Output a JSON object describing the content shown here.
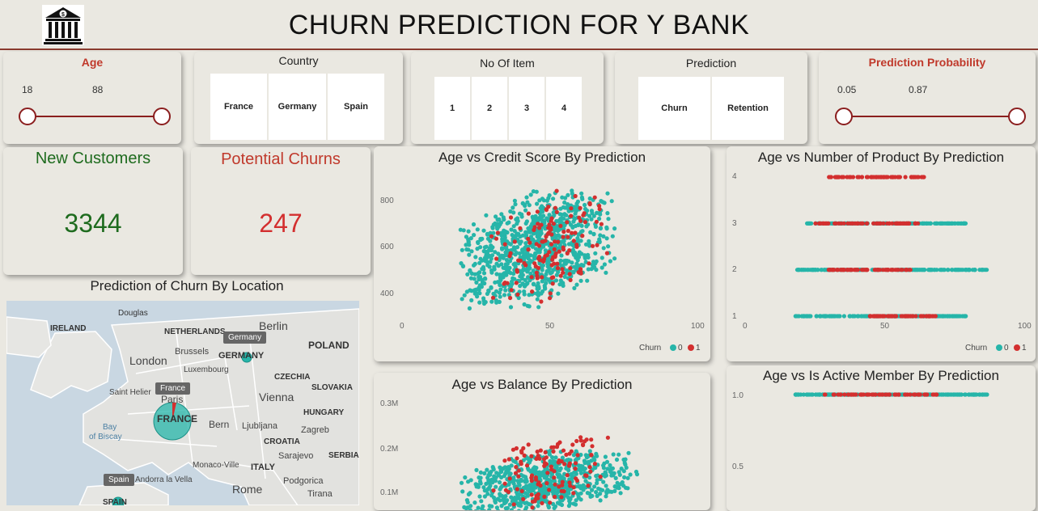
{
  "title": "CHURN PREDICTION FOR Y BANK",
  "logo_icon": "bank-icon",
  "slicers": {
    "age": {
      "title": "Age",
      "min": "18",
      "max": "88"
    },
    "country": {
      "title": "Country",
      "options": [
        "France",
        "Germany",
        "Spain"
      ]
    },
    "no_of_item": {
      "title": "No Of Item",
      "options": [
        "1",
        "2",
        "3",
        "4"
      ]
    },
    "prediction": {
      "title": "Prediction",
      "options": [
        "Churn",
        "Retention"
      ]
    },
    "probability": {
      "title": "Prediction Probability",
      "min": "0.05",
      "max": "0.87"
    }
  },
  "kpis": {
    "new_customers": {
      "title": "New Customers",
      "value": "3344",
      "color": "#1e6b1e"
    },
    "potential_churns": {
      "title": "Potential Churns",
      "value": "247",
      "color": "#d32f2f"
    }
  },
  "map": {
    "title": "Prediction of Churn By Location",
    "labels": {
      "douglas": "Douglas",
      "ireland": "IRELAND",
      "netherlands": "NETHERLANDS",
      "berlin": "Berlin",
      "poland": "POLAND",
      "london": "London",
      "brussels": "Brussels",
      "germany": "GERMANY",
      "luxembourg": "Luxembourg",
      "czechia": "CZECHIA",
      "saint_helier": "Saint Helier",
      "paris": "Paris",
      "vienna": "Vienna",
      "slovakia": "SLOVAKIA",
      "france": "FRANCE",
      "hungary": "HUNGARY",
      "bern": "Bern",
      "ljubljana": "Ljubljana",
      "zagreb": "Zagreb",
      "bay": "Bay",
      "of_biscay": "of Biscay",
      "croatia": "CROATIA",
      "sarajevo": "Sarajevo",
      "serbia": "SERBIA",
      "monaco": "Monaco-Ville",
      "italy": "ITALY",
      "andorra": "Andorra la Vella",
      "podgorica": "Podgorica",
      "rome": "Rome",
      "tirana": "Tirana",
      "spain": "SPAIN"
    },
    "tooltips": {
      "germany": "Germany",
      "france": "France",
      "spain": "Spain"
    }
  },
  "legend": {
    "title": "Churn",
    "items": [
      "0",
      "1"
    ]
  },
  "colors": {
    "retention": "#26b5a9",
    "churn": "#d32f2f",
    "accent": "#8b3a2f"
  },
  "chart_data": [
    {
      "type": "scatter",
      "title": "Age vs Credit Score By Prediction",
      "xlim": [
        0,
        100
      ],
      "xticks": [
        "0",
        "50",
        "100"
      ],
      "ylim": [
        350,
        850
      ],
      "yticks": [
        "400",
        "600",
        "800"
      ],
      "series": [
        {
          "name": "0",
          "x_range": [
            18,
            75
          ],
          "y_range": [
            360,
            850
          ]
        },
        {
          "name": "1",
          "x_range": [
            30,
            72
          ],
          "y_range": [
            380,
            850
          ]
        }
      ]
    },
    {
      "type": "scatter",
      "title": "Age vs Number of Product By Prediction",
      "xlim": [
        0,
        100
      ],
      "xticks": [
        "0",
        "50",
        "100"
      ],
      "ylim": [
        1,
        4
      ],
      "yticks": [
        "1",
        "2",
        "3",
        "4"
      ],
      "series": [
        {
          "name": "0",
          "rows": [
            {
              "y": 1,
              "x_range": [
                18,
                80
              ]
            },
            {
              "y": 2,
              "x_range": [
                18,
                88
              ]
            },
            {
              "y": 3,
              "x_range": [
                22,
                80
              ]
            }
          ]
        },
        {
          "name": "1",
          "rows": [
            {
              "y": 1,
              "x_range": [
                45,
                70
              ]
            },
            {
              "y": 2,
              "x_range": [
                30,
                60
              ]
            },
            {
              "y": 3,
              "x_range": [
                25,
                65
              ]
            },
            {
              "y": 4,
              "x_range": [
                30,
                65
              ]
            }
          ]
        }
      ]
    },
    {
      "type": "scatter",
      "title": "Age vs Balance By Prediction",
      "yticks": [
        "0.1M",
        "0.2M",
        "0.3M"
      ],
      "ylim": [
        0,
        0.3
      ],
      "xlim": [
        0,
        100
      ],
      "series": [
        {
          "name": "0",
          "x_range": [
            18,
            82
          ],
          "y_range": [
            0.05,
            0.2
          ]
        },
        {
          "name": "1",
          "x_range": [
            30,
            72
          ],
          "y_range": [
            0.05,
            0.25
          ]
        }
      ]
    },
    {
      "type": "scatter",
      "title": "Age vs Is Active Member By Prediction",
      "yticks": [
        "0.5",
        "1.0"
      ],
      "ylim": [
        0,
        1
      ],
      "xlim": [
        0,
        100
      ],
      "series": [
        {
          "name": "0",
          "rows": [
            {
              "y": 1,
              "x_range": [
                18,
                88
              ]
            }
          ]
        },
        {
          "name": "1",
          "rows": [
            {
              "y": 1,
              "x_range": [
                25,
                70
              ]
            }
          ]
        }
      ]
    }
  ]
}
